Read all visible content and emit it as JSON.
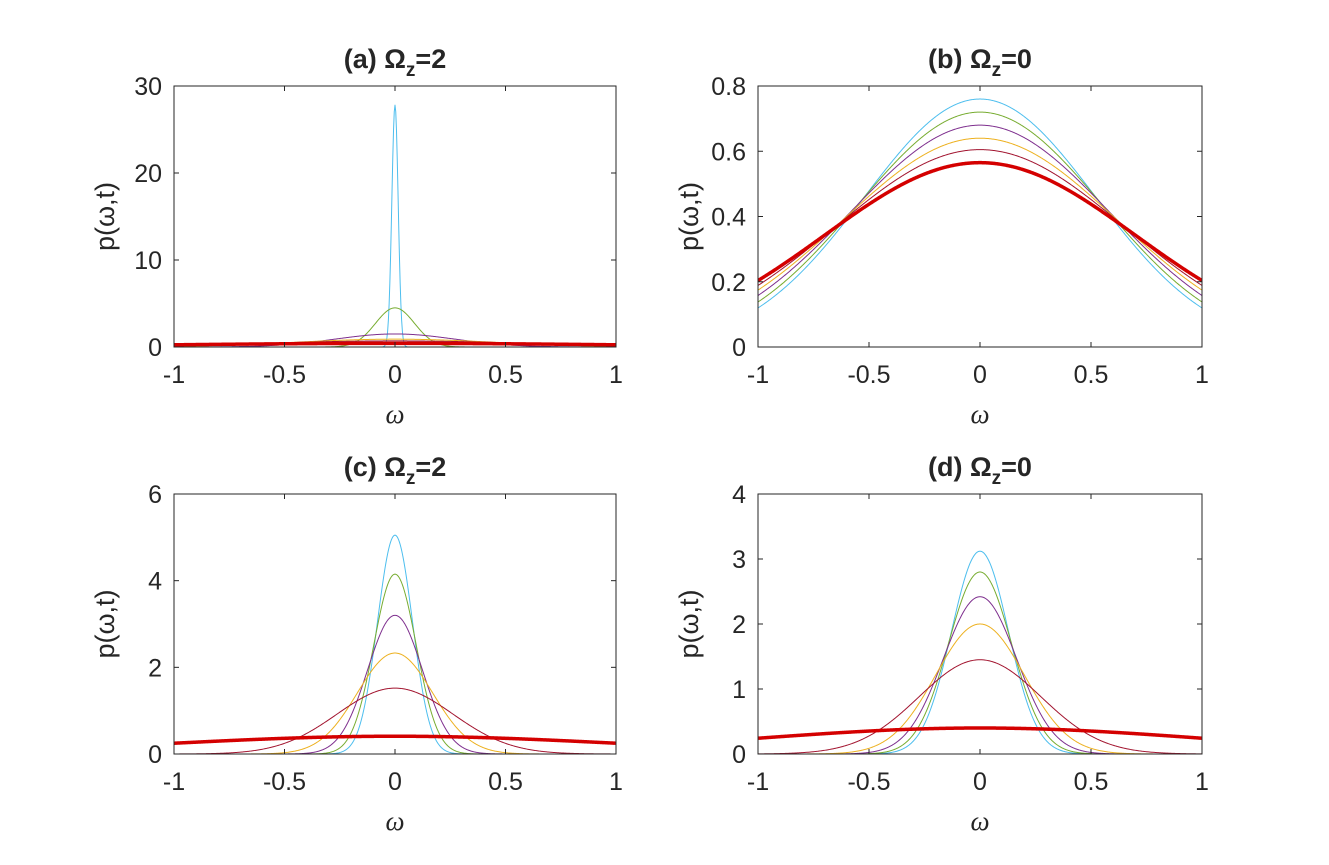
{
  "chart_data": [
    {
      "type": "line",
      "title": "(a) Ω",
      "title_sub": "z",
      "title_suffix": "=2",
      "xlabel": "ω",
      "ylabel": "p(ω,t)",
      "xlim": [
        -1,
        1
      ],
      "ylim": [
        0,
        30
      ],
      "xticks": [
        -1,
        -0.5,
        0,
        0.5,
        1
      ],
      "xtick_labels": [
        "-1",
        "-0.5",
        "0",
        "0.5",
        "1"
      ],
      "yticks": [
        0,
        10,
        20,
        30
      ],
      "ytick_labels": [
        "0",
        "10",
        "20",
        "30"
      ],
      "series": [
        {
          "name": "curve-1",
          "color": "#4dbeee",
          "width": 1,
          "shape": "gaussian",
          "peak": 27.8,
          "sigma": 0.0143
        },
        {
          "name": "curve-2",
          "color": "#77ac30",
          "width": 1,
          "shape": "gaussian",
          "peak": 4.5,
          "sigma": 0.088
        },
        {
          "name": "curve-3",
          "color": "#7e2f8e",
          "width": 1,
          "shape": "gaussian",
          "peak": 1.5,
          "sigma": 0.27
        },
        {
          "name": "curve-4",
          "color": "#edb120",
          "width": 1,
          "shape": "gaussian",
          "peak": 0.9,
          "sigma": 0.45
        },
        {
          "name": "curve-5",
          "color": "#a2142f",
          "width": 1,
          "shape": "gaussian",
          "peak": 0.7,
          "sigma": 0.6
        },
        {
          "name": "curve-6",
          "color": "#d40000",
          "width": 3.5,
          "shape": "gaussian",
          "peak": 0.42,
          "sigma": 1.0
        }
      ]
    },
    {
      "type": "line",
      "title": "(b) Ω",
      "title_sub": "z",
      "title_suffix": "=0",
      "xlabel": "ω",
      "ylabel": "p(ω,t)",
      "xlim": [
        -1,
        1
      ],
      "ylim": [
        0,
        0.8
      ],
      "xticks": [
        -1,
        -0.5,
        0,
        0.5,
        1
      ],
      "xtick_labels": [
        "-1",
        "-0.5",
        "0",
        "0.5",
        "1"
      ],
      "yticks": [
        0,
        0.2,
        0.4,
        0.6,
        0.8
      ],
      "ytick_labels": [
        "0",
        "0.2",
        "0.4",
        "0.6",
        "0.8"
      ],
      "series": [
        {
          "name": "curve-1",
          "color": "#4dbeee",
          "width": 1,
          "shape": "gaussian",
          "peak": 0.76,
          "sigma": 0.52
        },
        {
          "name": "curve-2",
          "color": "#77ac30",
          "width": 1,
          "shape": "gaussian",
          "peak": 0.72,
          "sigma": 0.55
        },
        {
          "name": "curve-3",
          "color": "#7e2f8e",
          "width": 1,
          "shape": "gaussian",
          "peak": 0.68,
          "sigma": 0.585
        },
        {
          "name": "curve-4",
          "color": "#edb120",
          "width": 1,
          "shape": "gaussian",
          "peak": 0.64,
          "sigma": 0.62
        },
        {
          "name": "curve-5",
          "color": "#a2142f",
          "width": 1,
          "shape": "gaussian",
          "peak": 0.605,
          "sigma": 0.655
        },
        {
          "name": "curve-6",
          "color": "#d40000",
          "width": 3.5,
          "shape": "gaussian",
          "peak": 0.565,
          "sigma": 0.7
        }
      ]
    },
    {
      "type": "line",
      "title": "(c) Ω",
      "title_sub": "z",
      "title_suffix": "=2",
      "xlabel": "ω",
      "ylabel": "p(ω,t)",
      "xlim": [
        -1,
        1
      ],
      "ylim": [
        0,
        6
      ],
      "xticks": [
        -1,
        -0.5,
        0,
        0.5,
        1
      ],
      "xtick_labels": [
        "-1",
        "-0.5",
        "0",
        "0.5",
        "1"
      ],
      "yticks": [
        0,
        2,
        4,
        6
      ],
      "ytick_labels": [
        "0",
        "2",
        "4",
        "6"
      ],
      "series": [
        {
          "name": "curve-1",
          "color": "#4dbeee",
          "width": 1,
          "shape": "gaussian",
          "peak": 5.05,
          "sigma": 0.079
        },
        {
          "name": "curve-2",
          "color": "#77ac30",
          "width": 1,
          "shape": "gaussian",
          "peak": 4.15,
          "sigma": 0.096
        },
        {
          "name": "curve-3",
          "color": "#7e2f8e",
          "width": 1,
          "shape": "gaussian",
          "peak": 3.2,
          "sigma": 0.124
        },
        {
          "name": "curve-4",
          "color": "#edb120",
          "width": 1,
          "shape": "gaussian",
          "peak": 2.33,
          "sigma": 0.17
        },
        {
          "name": "curve-5",
          "color": "#a2142f",
          "width": 1,
          "shape": "gaussian",
          "peak": 1.52,
          "sigma": 0.262
        },
        {
          "name": "curve-6",
          "color": "#d40000",
          "width": 3.5,
          "shape": "gaussian",
          "peak": 0.41,
          "sigma": 1.0
        }
      ]
    },
    {
      "type": "line",
      "title": "(d) Ω",
      "title_sub": "z",
      "title_suffix": "=0",
      "xlabel": "ω",
      "ylabel": "p(ω,t)",
      "xlim": [
        -1,
        1
      ],
      "ylim": [
        0,
        4
      ],
      "xticks": [
        -1,
        -0.5,
        0,
        0.5,
        1
      ],
      "xtick_labels": [
        "-1",
        "-0.5",
        "0",
        "0.5",
        "1"
      ],
      "yticks": [
        0,
        1,
        2,
        3,
        4
      ],
      "ytick_labels": [
        "0",
        "1",
        "2",
        "3",
        "4"
      ],
      "series": [
        {
          "name": "curve-1",
          "color": "#4dbeee",
          "width": 1,
          "shape": "gaussian",
          "peak": 3.12,
          "sigma": 0.128
        },
        {
          "name": "curve-2",
          "color": "#77ac30",
          "width": 1,
          "shape": "gaussian",
          "peak": 2.8,
          "sigma": 0.142
        },
        {
          "name": "curve-3",
          "color": "#7e2f8e",
          "width": 1,
          "shape": "gaussian",
          "peak": 2.42,
          "sigma": 0.165
        },
        {
          "name": "curve-4",
          "color": "#edb120",
          "width": 1,
          "shape": "gaussian",
          "peak": 2.0,
          "sigma": 0.2
        },
        {
          "name": "curve-5",
          "color": "#a2142f",
          "width": 1,
          "shape": "gaussian",
          "peak": 1.45,
          "sigma": 0.275
        },
        {
          "name": "curve-6",
          "color": "#d40000",
          "width": 3.5,
          "shape": "gaussian",
          "peak": 0.4,
          "sigma": 1.0
        }
      ]
    }
  ]
}
